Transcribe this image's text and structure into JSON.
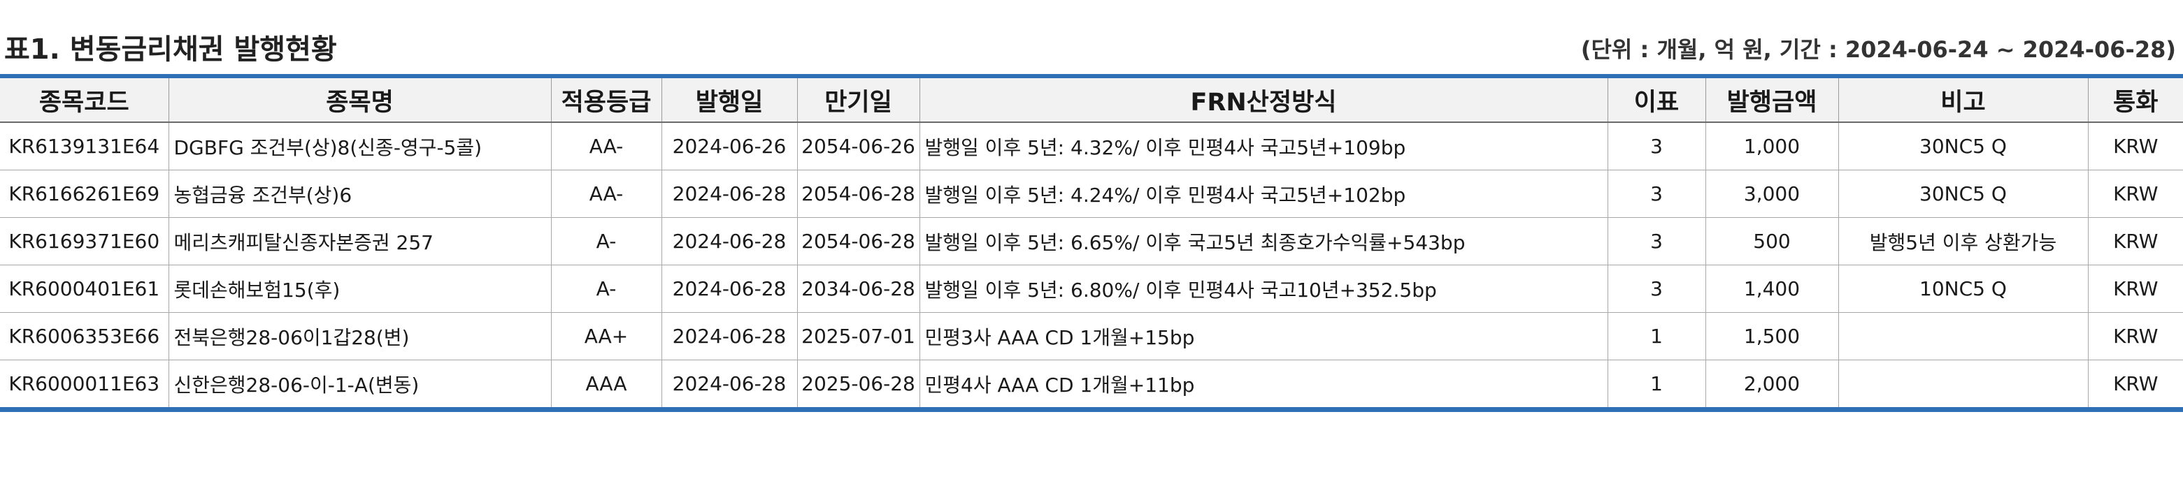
{
  "title": "표1. 변동금리채권 발행현황",
  "unit_note": "(단위 : 개월, 억 원, 기간 : 2024-06-24 ~ 2024-06-28)",
  "table": {
    "headers": [
      "종목코드",
      "종목명",
      "적용등급",
      "발행일",
      "만기일",
      "FRN산정방식",
      "이표",
      "발행금액",
      "비고",
      "통화"
    ],
    "rows": [
      [
        "KR6139131E64",
        "DGBFG 조건부(상)8(신종-영구-5콜)",
        "AA-",
        "2024-06-26",
        "2054-06-26",
        "발행일 이후 5년: 4.32%/ 이후 민평4사 국고5년+109bp",
        "3",
        "1,000",
        "30NC5 Q",
        "KRW"
      ],
      [
        "KR6166261E69",
        "농협금융 조건부(상)6",
        "AA-",
        "2024-06-28",
        "2054-06-28",
        "발행일 이후 5년: 4.24%/ 이후 민평4사 국고5년+102bp",
        "3",
        "3,000",
        "30NC5 Q",
        "KRW"
      ],
      [
        "KR6169371E60",
        "메리츠캐피탈신종자본증권 257",
        "A-",
        "2024-06-28",
        "2054-06-28",
        "발행일 이후 5년: 6.65%/ 이후 국고5년 최종호가수익률+543bp",
        "3",
        "500",
        "발행5년 이후 상환가능",
        "KRW"
      ],
      [
        "KR6000401E61",
        "롯데손해보험15(후)",
        "A-",
        "2024-06-28",
        "2034-06-28",
        "발행일 이후 5년: 6.80%/ 이후 민평4사 국고10년+352.5bp",
        "3",
        "1,400",
        "10NC5 Q",
        "KRW"
      ],
      [
        "KR6006353E66",
        "전북은행28-06이1갑28(변)",
        "AA+",
        "2024-06-28",
        "2025-07-01",
        "민평3사 AAA CD 1개월+15bp",
        "1",
        "1,500",
        "",
        "KRW"
      ],
      [
        "KR6000011E63",
        "신한은행28-06-이-1-A(변동)",
        "AAA",
        "2024-06-28",
        "2025-06-28",
        "민평4사 AAA CD 1개월+11bp",
        "1",
        "2,000",
        "",
        "KRW"
      ]
    ]
  }
}
